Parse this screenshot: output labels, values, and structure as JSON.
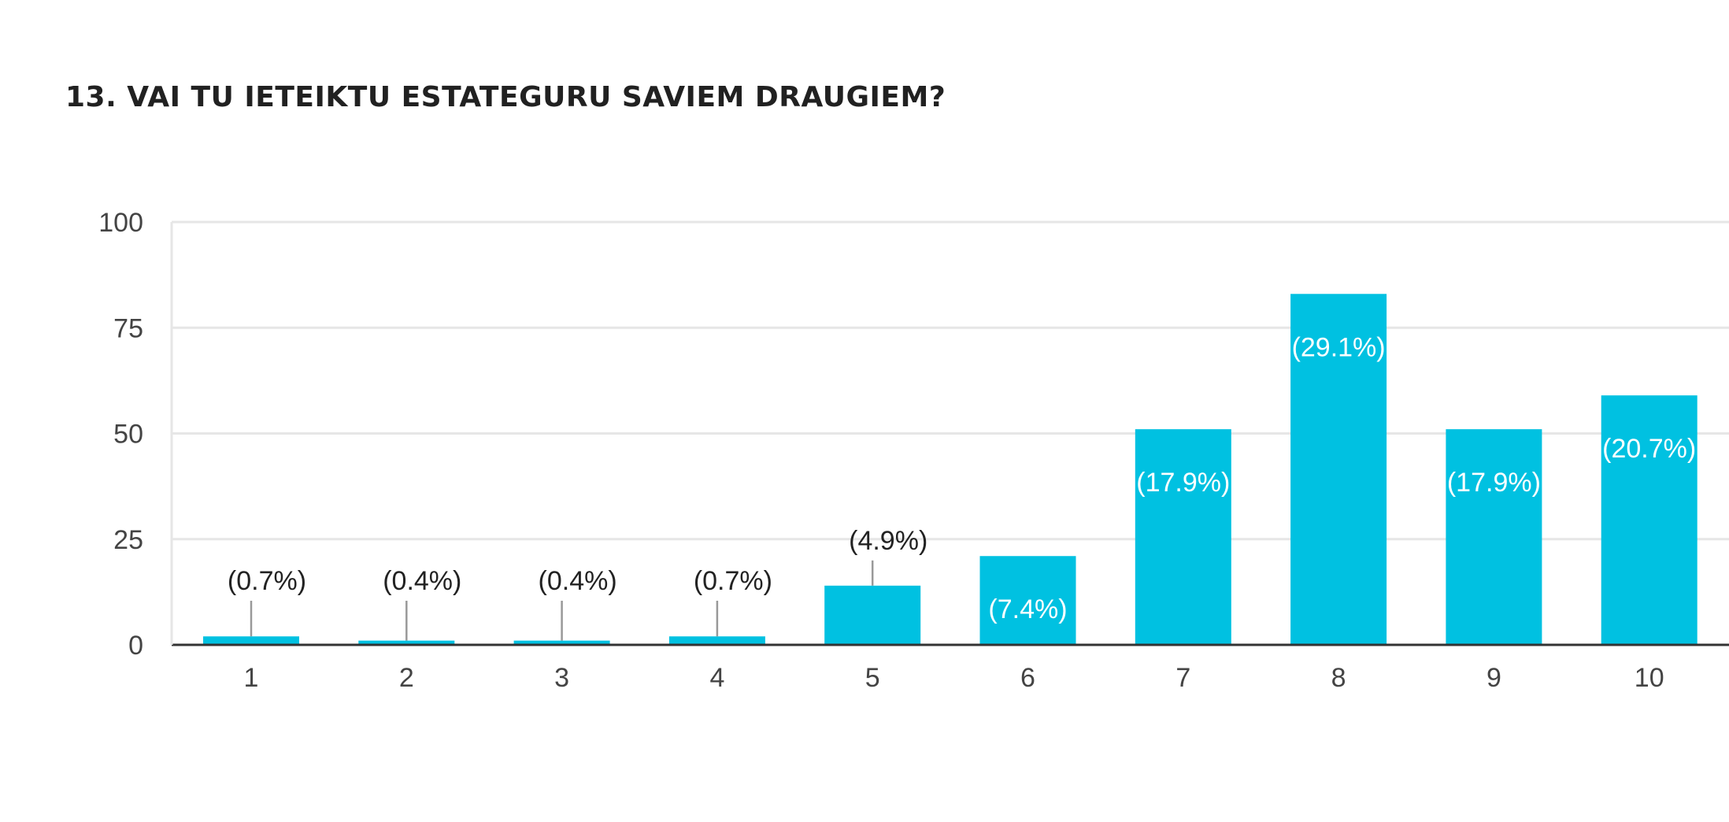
{
  "chart_data": {
    "type": "bar",
    "title": "13. VAI TU IETEIKTU ESTATEGURU SAVIEM DRAUGIEM?",
    "xlabel": "",
    "ylabel": "",
    "categories": [
      "1",
      "2",
      "3",
      "4",
      "5",
      "6",
      "7",
      "8",
      "9",
      "10"
    ],
    "values": [
      2,
      1,
      1,
      2,
      14,
      21,
      51,
      83,
      51,
      59
    ],
    "data_labels": [
      "(0.7%)",
      "(0.4%)",
      "(0.4%)",
      "(0.7%)",
      "(4.9%)",
      "(7.4%)",
      "(17.9%)",
      "(29.1%)",
      "(17.9%)",
      "(20.7%)"
    ],
    "ylim": [
      0,
      100
    ],
    "yticks": [
      "0",
      "25",
      "50",
      "75",
      "100"
    ],
    "grid": true,
    "legend": "none",
    "bar_color": "#00c1e1"
  }
}
